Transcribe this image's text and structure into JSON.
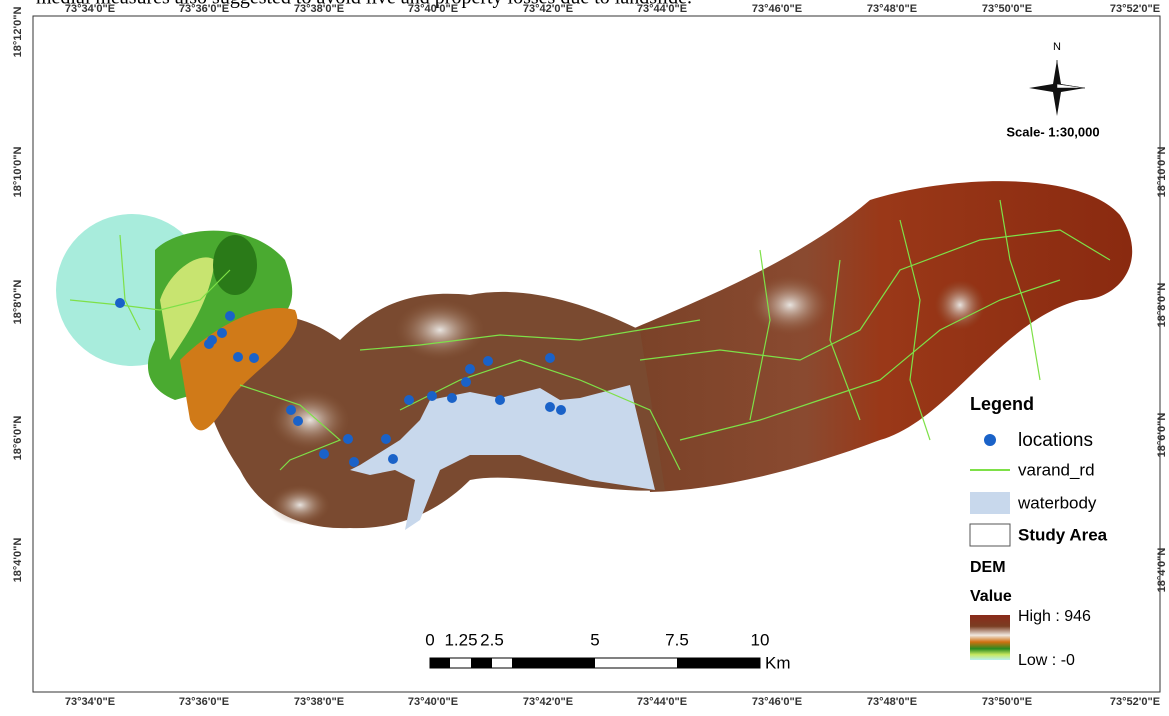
{
  "header_text": "medial measures also suggested to avoid live and property losses due to landslide.",
  "map": {
    "top_labels": [
      "73°34'0\"E",
      "73°36'0\"E",
      "73°38'0\"E",
      "73°40'0\"E",
      "73°42'0\"E",
      "73°44'0\"E",
      "73°46'0\"E",
      "73°48'0\"E",
      "73°50'0\"E",
      "73°52'0\"E"
    ],
    "bottom_labels": [
      "73°34'0\"E",
      "73°36'0\"E",
      "73°38'0\"E",
      "73°40'0\"E",
      "73°42'0\"E",
      "73°44'0\"E",
      "73°46'0\"E",
      "73°48'0\"E",
      "73°50'0\"E",
      "73°52'0\"E"
    ],
    "left_labels": [
      "18°12'0\"N",
      "18°10'0\"N",
      "18°8'0\"N",
      "18°6'0\"N",
      "18°4'0\"N"
    ],
    "right_labels": [
      "18°10'0\"N",
      "18°8'0\"N",
      "18°6'0\"N",
      "18°4'0\"N"
    ],
    "north": "N",
    "scale": "Scale- 1:30,000"
  },
  "scale_bar": {
    "labels": [
      "0",
      "1.25",
      "2.5",
      "5",
      "7.5",
      "10"
    ],
    "unit": "Km"
  },
  "legend": {
    "title": "Legend",
    "items": [
      "locations",
      "varand_rd",
      "waterbody",
      "Study Area"
    ],
    "dem_title": "DEM",
    "value_title": "Value",
    "high": "High : 946",
    "low": "Low : -0"
  }
}
